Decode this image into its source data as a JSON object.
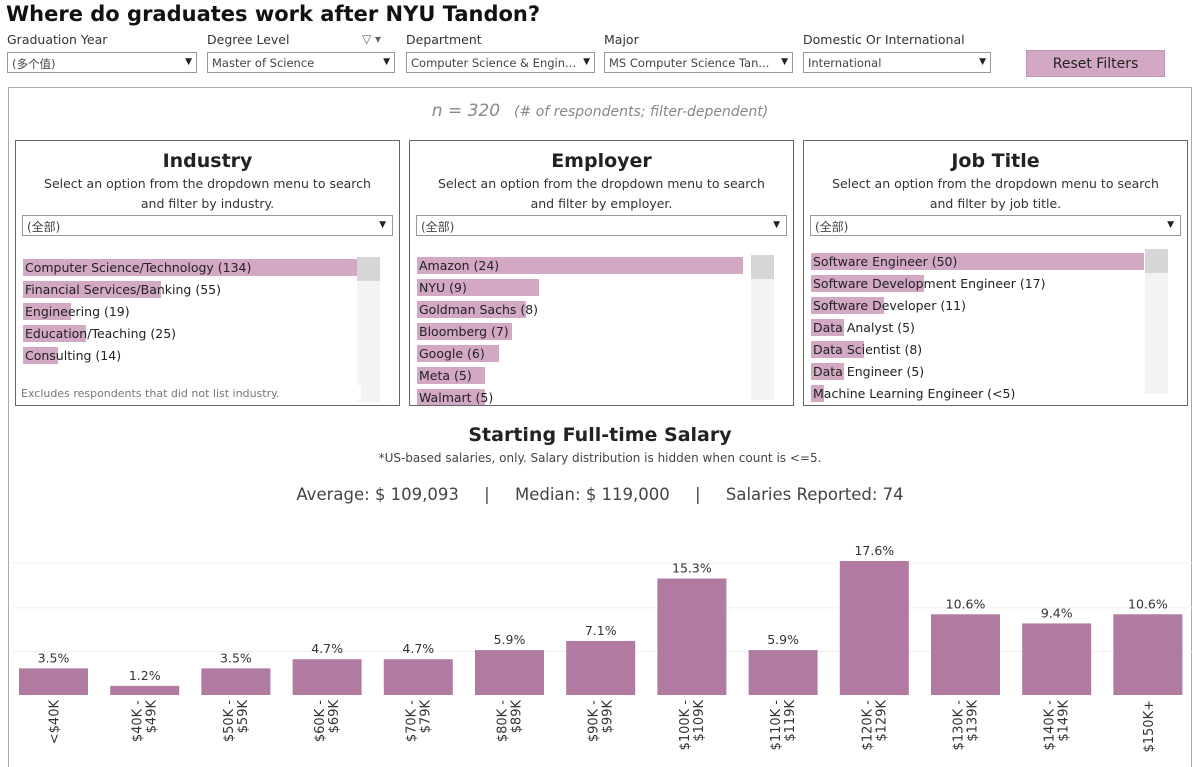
{
  "page": {
    "title": "Where do graduates work after NYU Tandon?"
  },
  "filters": [
    {
      "label": "Graduation Year",
      "value": "(多个值)"
    },
    {
      "label": "Degree Level",
      "value": "Master of Science"
    },
    {
      "label": "Department",
      "value": "Computer Science & Engin..."
    },
    {
      "label": "Major",
      "value": "MS Computer Science Tan..."
    },
    {
      "label": "Domestic Or International",
      "value": "International"
    }
  ],
  "reset_label": "Reset Filters",
  "respondents": {
    "n_text": "n = 320",
    "note": "(# of respondents; filter-dependent)"
  },
  "panels": {
    "industry": {
      "title": "Industry",
      "desc": "Select an option from the dropdown menu to search and filter by industry.",
      "dropdown": "(全部)",
      "footnote": "Excludes respondents that did not list industry.",
      "items": [
        {
          "label": "Computer Science/Technology  (134)",
          "count": 134
        },
        {
          "label": "Financial Services/Banking  (55)",
          "count": 55
        },
        {
          "label": "Engineering  (19)",
          "count": 19
        },
        {
          "label": "Education/Teaching  (25)",
          "count": 25
        },
        {
          "label": "Consulting  (14)",
          "count": 14
        }
      ]
    },
    "employer": {
      "title": "Employer",
      "desc": "Select an option from the dropdown menu to search and filter by employer.",
      "dropdown": "(全部)",
      "items": [
        {
          "label": "Amazon  (24)",
          "count": 24
        },
        {
          "label": "NYU  (9)",
          "count": 9
        },
        {
          "label": "Goldman Sachs  (8)",
          "count": 8
        },
        {
          "label": "Bloomberg  (7)",
          "count": 7
        },
        {
          "label": "Google  (6)",
          "count": 6
        },
        {
          "label": "Meta  (5)",
          "count": 5
        },
        {
          "label": "Walmart  (5)",
          "count": 5
        }
      ]
    },
    "jobtitle": {
      "title": "Job Title",
      "desc": "Select an option from the dropdown menu to search and filter by job title.",
      "dropdown": "(全部)",
      "items": [
        {
          "label": "Software Engineer (50)",
          "count": 50
        },
        {
          "label": "Software Development Engineer (17)",
          "count": 17
        },
        {
          "label": "Software Developer (11)",
          "count": 11
        },
        {
          "label": "Data Analyst (5)",
          "count": 5
        },
        {
          "label": "Data Scientist (8)",
          "count": 8
        },
        {
          "label": "Data Engineer (5)",
          "count": 5
        },
        {
          "label": "Machine Learning Engineer (<5)",
          "count": 2
        }
      ]
    }
  },
  "salary": {
    "title": "Starting Full-time Salary",
    "subtitle": "*US-based salaries, only. Salary distribution is hidden when count is <=5.",
    "average_label": "Average:",
    "average": "$ 109,093",
    "median_label": "Median:",
    "median": "$ 119,000",
    "reported_label": "Salaries Reported:",
    "reported": "74",
    "sep": "|"
  },
  "chart_data": {
    "type": "bar",
    "title": "Starting Full-time Salary",
    "xlabel": "",
    "ylabel": "",
    "ylim": [
      0,
      17.6
    ],
    "bar_color": "#b07aa1",
    "categories": [
      "<$40K",
      "$40K - $49K",
      "$50K - $59K",
      "$60K - $69K",
      "$70K - $79K",
      "$80K - $89K",
      "$90K - $99K",
      "$100K - $109K",
      "$110K - $119K",
      "$120K - $129K",
      "$130K - $139K",
      "$140K - $149K",
      "$150K+"
    ],
    "values": [
      3.5,
      1.2,
      3.5,
      4.7,
      4.7,
      5.9,
      7.1,
      15.3,
      5.9,
      17.6,
      10.6,
      9.4,
      10.6
    ],
    "value_labels": [
      "3.5%",
      "1.2%",
      "3.5%",
      "4.7%",
      "4.7%",
      "5.9%",
      "7.1%",
      "15.3%",
      "5.9%",
      "17.6%",
      "10.6%",
      "9.4%",
      "10.6%"
    ]
  }
}
